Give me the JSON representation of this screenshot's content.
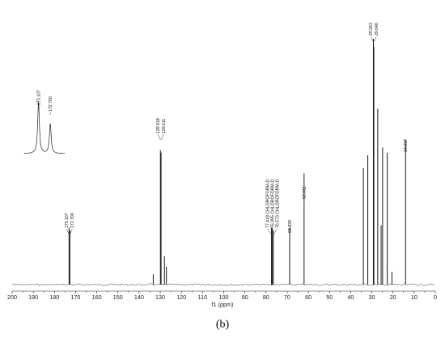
{
  "figure": {
    "caption": "(b)"
  },
  "chart_data": {
    "type": "line",
    "xlabel": "f1 (ppm)",
    "xlim": [
      200,
      0
    ],
    "x_reversed": true,
    "x_ticks": [
      200,
      190,
      180,
      170,
      160,
      150,
      140,
      130,
      120,
      110,
      100,
      90,
      80,
      70,
      60,
      50,
      40,
      30,
      20,
      10,
      0
    ],
    "grid": false,
    "peaks": [
      {
        "ppm": 173.107,
        "height": 0.22
      },
      {
        "ppm": 172.7,
        "height": 0.21
      },
      {
        "ppm": 133.3,
        "height": 0.04
      },
      {
        "ppm": 129.918,
        "height": 0.52
      },
      {
        "ppm": 129.611,
        "height": 0.51
      },
      {
        "ppm": 128.0,
        "height": 0.11
      },
      {
        "ppm": 127.1,
        "height": 0.07
      },
      {
        "ppm": 77.418,
        "height": 0.22
      },
      {
        "ppm": 76.995,
        "height": 0.22
      },
      {
        "ppm": 76.573,
        "height": 0.21
      },
      {
        "ppm": 68.829,
        "height": 0.22
      },
      {
        "ppm": 62.011,
        "height": 0.43
      },
      {
        "ppm": 34.0,
        "height": 0.45
      },
      {
        "ppm": 31.9,
        "height": 0.5
      },
      {
        "ppm": 29.263,
        "height": 0.95
      },
      {
        "ppm": 29.04,
        "height": 0.92
      },
      {
        "ppm": 27.2,
        "height": 0.68
      },
      {
        "ppm": 25.6,
        "height": 0.23
      },
      {
        "ppm": 24.9,
        "height": 0.53
      },
      {
        "ppm": 22.7,
        "height": 0.51
      },
      {
        "ppm": 20.5,
        "height": 0.05
      },
      {
        "ppm": 14.037,
        "height": 0.56
      }
    ],
    "labels": [
      {
        "text": "173.107",
        "ppm": 173.107,
        "group": "ester"
      },
      {
        "text": "172.700",
        "ppm": 172.7,
        "group": "ester"
      },
      {
        "text": "129.918",
        "ppm": 129.918,
        "group": "olefin"
      },
      {
        "text": "129.611",
        "ppm": 129.611,
        "group": "olefin"
      },
      {
        "text": "77.418 CHLOROFORM-D",
        "ppm": 77.418,
        "group": "cdcl3"
      },
      {
        "text": "76.995 CHLOROFORM-D",
        "ppm": 76.995,
        "group": "cdcl3"
      },
      {
        "text": "76.573 CHLOROFORM-D",
        "ppm": 76.573,
        "group": "cdcl3"
      },
      {
        "text": "68.829",
        "ppm": 68.829,
        "group": "single"
      },
      {
        "text": "62.011",
        "ppm": 62.011,
        "group": "single2"
      },
      {
        "text": "29.263",
        "ppm": 29.263,
        "group": "alkyl"
      },
      {
        "text": "29.040",
        "ppm": 29.04,
        "group": "alkyl"
      },
      {
        "text": "14.037",
        "ppm": 14.037,
        "group": "methyl"
      }
    ],
    "inset": {
      "labels": [
        "173.107",
        "172.700"
      ],
      "peaks": [
        {
          "ppm": 173.107,
          "height": 0.95
        },
        {
          "ppm": 172.7,
          "height": 0.55
        }
      ]
    }
  }
}
